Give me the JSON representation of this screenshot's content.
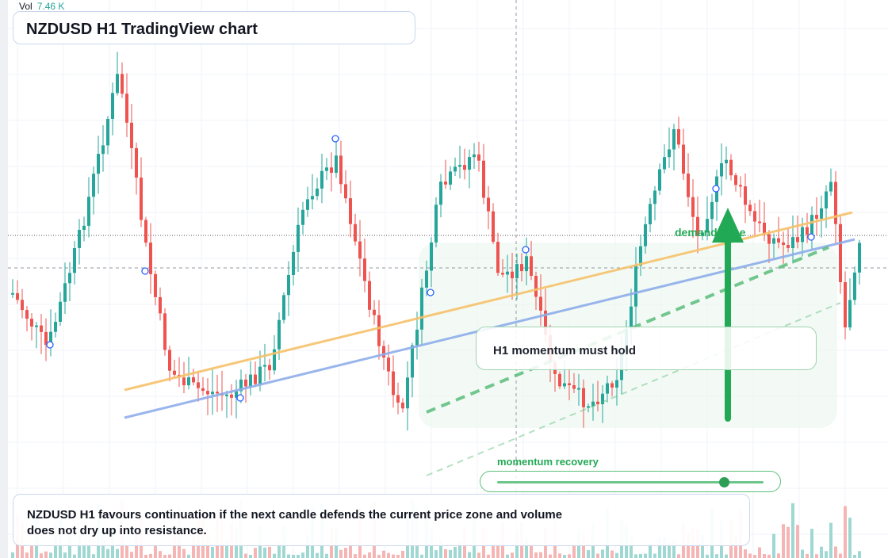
{
  "title": "NZDUSD H1 TradingView chart",
  "volume": {
    "label": "Vol",
    "value": "7.46 K"
  },
  "annotations": {
    "callout": "H1 momentum must hold",
    "zone_label": "demand zone",
    "momentum_label": "momentum recovery",
    "note": "NZDUSD H1 favours continuation if the next candle defends the current price zone and volume does not dry up into resistance."
  },
  "momentum_slider": {
    "value": 0.85
  },
  "colors": {
    "up": "#26a69a",
    "down": "#ef5350",
    "up_volume": "#9fd8d2",
    "down_volume": "#f5b5b4",
    "orange_line": "#f6c26b",
    "blue_line": "#8eaeea",
    "green_dashed": "#5bbd7b",
    "arrow": "#22a955",
    "zone_fill": "#e9f6ec"
  },
  "chart_data": {
    "type": "candlestick",
    "series": "NZDUSD",
    "timeframe": "H1"
  }
}
